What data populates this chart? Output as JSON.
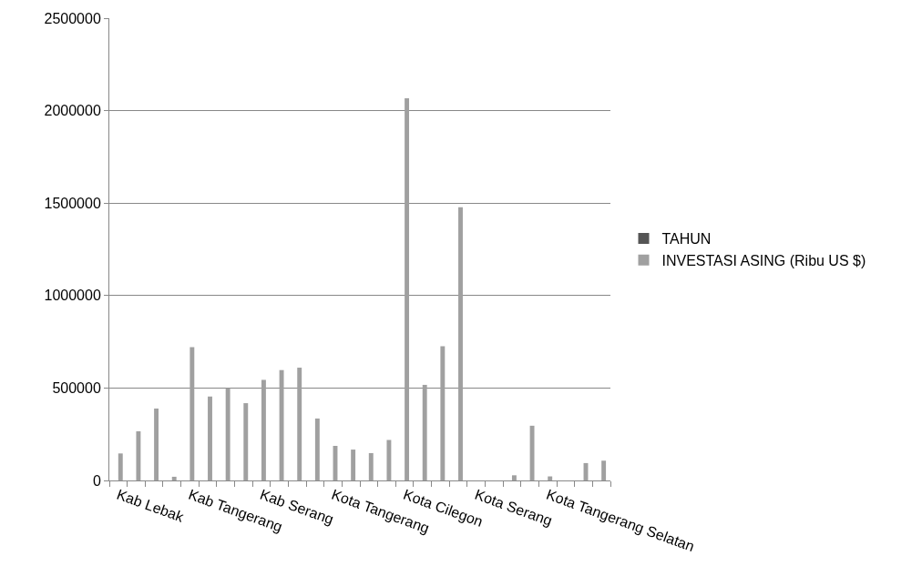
{
  "chart_data": {
    "type": "bar",
    "categories": [
      "Kab Lebak",
      null,
      null,
      null,
      "Kab Tangerang",
      null,
      null,
      null,
      "Kab Serang",
      null,
      null,
      null,
      "Kota Tangerang",
      null,
      null,
      null,
      "Kota Cilegon",
      null,
      null,
      null,
      "Kota Serang",
      null,
      null,
      null,
      "Kota Tangerang Selatan",
      null,
      null,
      null
    ],
    "series": [
      {
        "name": "TAHUN",
        "color": "#555555",
        "values": [
          null,
          null,
          null,
          null,
          null,
          null,
          null,
          null,
          null,
          null,
          null,
          null,
          null,
          null,
          null,
          null,
          null,
          null,
          null,
          null,
          null,
          null,
          null,
          null,
          null,
          null,
          null,
          null
        ]
      },
      {
        "name": "INVESTASI ASING (Ribu US $)",
        "color": "#a0a0a0",
        "values": [
          146000,
          266000,
          389000,
          20000,
          721000,
          454000,
          499000,
          418000,
          544000,
          597000,
          610000,
          335000,
          187000,
          167000,
          148000,
          219000,
          2067000,
          517000,
          726000,
          1478000,
          null,
          null,
          28000,
          296000,
          22000,
          null,
          94000,
          107000
        ]
      }
    ],
    "ylim": [
      0,
      2500000
    ],
    "yticks": [
      0,
      500000,
      1000000,
      1500000,
      2000000,
      2500000
    ],
    "grid": "y",
    "legend": "right"
  }
}
